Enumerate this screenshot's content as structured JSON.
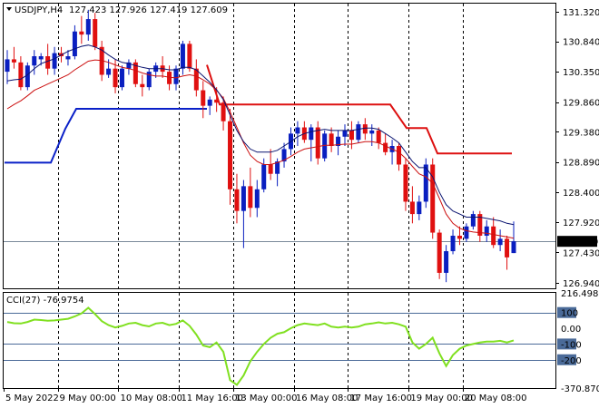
{
  "header": {
    "symbol_label": "USDJPY,H4",
    "ohlc_label": "127.423 127.926 127.419 127.609"
  },
  "indicator": {
    "label": "CCI(27) -76.9754",
    "axis": [
      "216.4983",
      "100",
      "0.00",
      "-100",
      "-200",
      "-370.8706"
    ],
    "levels": [
      100,
      0,
      -100,
      -200
    ]
  },
  "colors": {
    "bull": "#0a1fc0",
    "bear": "#e01010",
    "ma_fast": "#0a1470",
    "ma_slow": "#cc1010",
    "stop_upper": "#dd1010",
    "stop_lower": "#0a20c8",
    "cci": "#80e020",
    "level": "#4a6a98",
    "current_price_bg": "#000000"
  },
  "chart_data": {
    "type": "candlestick",
    "price_axis": [
      "131.320",
      "130.840",
      "130.350",
      "129.860",
      "129.380",
      "128.890",
      "128.400",
      "127.920",
      "127.430",
      "126.940"
    ],
    "ylim": [
      126.85,
      131.45
    ],
    "current_price": "127.609",
    "time_labels": [
      "5 May 2022",
      "9 May 00:00",
      "10 May 08:00",
      "11 May 16:00",
      "13 May 00:00",
      "16 May 08:00",
      "17 May 16:00",
      "19 May 00:00",
      "20 May 08:00"
    ],
    "candles": [
      [
        130.35,
        130.7,
        130.15,
        130.55
      ],
      [
        130.55,
        130.75,
        130.4,
        130.5
      ],
      [
        130.5,
        130.6,
        130.05,
        130.1
      ],
      [
        130.1,
        130.5,
        130.05,
        130.45
      ],
      [
        130.45,
        130.7,
        130.3,
        130.6
      ],
      [
        130.55,
        130.65,
        130.45,
        130.6
      ],
      [
        130.6,
        130.8,
        130.3,
        130.4
      ],
      [
        130.4,
        130.75,
        130.3,
        130.65
      ],
      [
        130.65,
        130.75,
        130.5,
        130.6
      ],
      [
        130.55,
        130.7,
        130.45,
        130.6
      ],
      [
        130.6,
        131.1,
        130.55,
        131.0
      ],
      [
        131.0,
        131.25,
        130.8,
        130.95
      ],
      [
        130.95,
        131.35,
        130.85,
        131.2
      ],
      [
        131.2,
        131.3,
        130.7,
        130.75
      ],
      [
        130.75,
        130.85,
        130.2,
        130.3
      ],
      [
        130.3,
        130.55,
        130.25,
        130.4
      ],
      [
        130.4,
        130.55,
        130.0,
        130.1
      ],
      [
        130.1,
        130.45,
        130.05,
        130.4
      ],
      [
        130.4,
        130.55,
        130.3,
        130.5
      ],
      [
        130.5,
        130.55,
        130.1,
        130.15
      ],
      [
        130.15,
        130.3,
        129.95,
        130.1
      ],
      [
        130.1,
        130.4,
        130.05,
        130.35
      ],
      [
        130.35,
        130.5,
        130.25,
        130.45
      ],
      [
        130.45,
        130.6,
        130.25,
        130.35
      ],
      [
        130.35,
        130.45,
        130.05,
        130.15
      ],
      [
        130.15,
        130.45,
        130.05,
        130.4
      ],
      [
        130.4,
        130.85,
        130.3,
        130.8
      ],
      [
        130.8,
        130.85,
        130.35,
        130.4
      ],
      [
        130.4,
        130.55,
        129.95,
        130.05
      ],
      [
        130.05,
        130.2,
        129.6,
        129.8
      ],
      [
        129.8,
        129.95,
        129.65,
        129.9
      ],
      [
        129.9,
        130.1,
        129.7,
        129.85
      ],
      [
        129.85,
        129.95,
        129.4,
        129.55
      ],
      [
        129.55,
        129.75,
        128.2,
        128.45
      ],
      [
        128.45,
        128.7,
        127.9,
        128.1
      ],
      [
        128.1,
        128.6,
        127.5,
        128.5
      ],
      [
        128.5,
        128.8,
        128.0,
        128.15
      ],
      [
        128.15,
        128.6,
        128.0,
        128.45
      ],
      [
        128.45,
        128.95,
        128.4,
        128.85
      ],
      [
        128.85,
        129.1,
        128.6,
        128.7
      ],
      [
        128.7,
        128.95,
        128.5,
        128.9
      ],
      [
        128.9,
        129.2,
        128.8,
        129.1
      ],
      [
        129.1,
        129.45,
        129.0,
        129.35
      ],
      [
        129.35,
        129.55,
        129.15,
        129.45
      ],
      [
        129.45,
        129.55,
        129.2,
        129.25
      ],
      [
        129.25,
        129.5,
        128.9,
        129.45
      ],
      [
        129.45,
        129.55,
        128.85,
        128.95
      ],
      [
        128.95,
        129.4,
        128.9,
        129.35
      ],
      [
        129.35,
        129.45,
        129.05,
        129.15
      ],
      [
        129.15,
        129.4,
        129.0,
        129.3
      ],
      [
        129.3,
        129.5,
        129.15,
        129.4
      ],
      [
        129.4,
        129.55,
        129.1,
        129.25
      ],
      [
        129.25,
        129.55,
        129.2,
        129.5
      ],
      [
        129.5,
        129.6,
        129.25,
        129.35
      ],
      [
        129.35,
        129.5,
        129.15,
        129.4
      ],
      [
        129.4,
        129.45,
        129.1,
        129.2
      ],
      [
        129.2,
        129.35,
        129.0,
        129.05
      ],
      [
        129.05,
        129.25,
        128.85,
        129.15
      ],
      [
        129.15,
        129.2,
        128.75,
        128.85
      ],
      [
        128.85,
        128.95,
        128.1,
        128.25
      ],
      [
        128.25,
        128.5,
        127.9,
        128.05
      ],
      [
        128.05,
        128.35,
        127.95,
        128.25
      ],
      [
        128.25,
        128.95,
        128.15,
        128.85
      ],
      [
        128.85,
        128.95,
        127.65,
        127.75
      ],
      [
        127.75,
        127.8,
        127.0,
        127.1
      ],
      [
        127.1,
        127.55,
        126.95,
        127.45
      ],
      [
        127.45,
        127.8,
        127.4,
        127.7
      ],
      [
        127.7,
        127.85,
        127.55,
        127.65
      ],
      [
        127.65,
        127.9,
        127.6,
        127.85
      ],
      [
        127.85,
        128.1,
        127.8,
        128.05
      ],
      [
        128.05,
        128.1,
        127.6,
        127.7
      ],
      [
        127.7,
        127.95,
        127.6,
        127.85
      ],
      [
        127.85,
        128.0,
        127.5,
        127.55
      ],
      [
        127.55,
        127.8,
        127.45,
        127.65
      ],
      [
        127.65,
        127.7,
        127.15,
        127.35
      ],
      [
        127.42,
        127.93,
        127.42,
        127.61
      ]
    ],
    "ma_fast": [
      130.2,
      130.22,
      130.23,
      130.3,
      130.4,
      130.48,
      130.52,
      130.56,
      130.62,
      130.68,
      130.72,
      130.76,
      130.78,
      130.75,
      130.7,
      130.62,
      130.55,
      130.5,
      130.48,
      130.45,
      130.42,
      130.4,
      130.4,
      130.4,
      130.38,
      130.38,
      130.42,
      130.42,
      130.38,
      130.28,
      130.18,
      130.06,
      129.9,
      129.65,
      129.4,
      129.22,
      129.1,
      129.05,
      129.05,
      129.05,
      129.08,
      129.15,
      129.22,
      129.3,
      129.35,
      129.38,
      129.4,
      129.42,
      129.4,
      129.4,
      129.4,
      129.4,
      129.42,
      129.44,
      129.44,
      129.42,
      129.35,
      129.28,
      129.2,
      129.05,
      128.9,
      128.8,
      128.8,
      128.65,
      128.4,
      128.2,
      128.1,
      128.05,
      128.0,
      128.0,
      128.0,
      127.98,
      127.96,
      127.94,
      127.9,
      127.88
    ],
    "ma_slow": [
      129.75,
      129.82,
      129.88,
      129.96,
      130.05,
      130.1,
      130.15,
      130.2,
      130.25,
      130.3,
      130.38,
      130.45,
      130.52,
      130.54,
      130.53,
      130.5,
      130.46,
      130.42,
      130.4,
      130.37,
      130.33,
      130.3,
      130.28,
      130.28,
      130.26,
      130.25,
      130.28,
      130.3,
      130.28,
      130.22,
      130.15,
      130.05,
      129.92,
      129.7,
      129.45,
      129.2,
      129.0,
      128.9,
      128.85,
      128.85,
      128.88,
      128.92,
      128.98,
      129.05,
      129.1,
      129.12,
      129.14,
      129.16,
      129.16,
      129.17,
      129.18,
      129.18,
      129.2,
      129.22,
      129.22,
      129.2,
      129.15,
      129.1,
      129.05,
      128.95,
      128.82,
      128.7,
      128.65,
      128.55,
      128.3,
      128.05,
      127.9,
      127.82,
      127.78,
      127.76,
      127.75,
      127.74,
      127.72,
      127.7,
      127.68,
      127.66
    ],
    "stop_upper_segments": [
      [
        [
          228,
          130.46
        ],
        [
          242,
          129.82
        ],
        [
          430,
          129.82
        ],
        [
          448,
          129.44
        ],
        [
          470,
          129.44
        ],
        [
          482,
          129.03
        ],
        [
          564,
          129.03
        ]
      ]
    ],
    "stop_lower_segments": [
      [
        [
          5,
          128.88
        ],
        [
          56,
          128.88
        ],
        [
          72,
          129.43
        ],
        [
          84,
          129.75
        ],
        [
          228,
          129.75
        ]
      ]
    ],
    "cci": [
      40,
      32,
      30,
      40,
      55,
      52,
      48,
      50,
      55,
      60,
      75,
      95,
      130,
      90,
      45,
      20,
      5,
      15,
      30,
      35,
      20,
      12,
      30,
      35,
      20,
      28,
      50,
      15,
      -40,
      -110,
      -120,
      -90,
      -150,
      -330,
      -360,
      -300,
      -210,
      -150,
      -100,
      -60,
      -35,
      -25,
      0,
      20,
      30,
      25,
      20,
      30,
      10,
      5,
      10,
      5,
      10,
      25,
      30,
      38,
      30,
      35,
      25,
      10,
      -90,
      -130,
      -100,
      -60,
      -160,
      -240,
      -170,
      -130,
      -110,
      -100,
      -90,
      -85,
      -85,
      -80,
      -90,
      -77
    ],
    "cci_ylim": [
      -380,
      225
    ]
  }
}
